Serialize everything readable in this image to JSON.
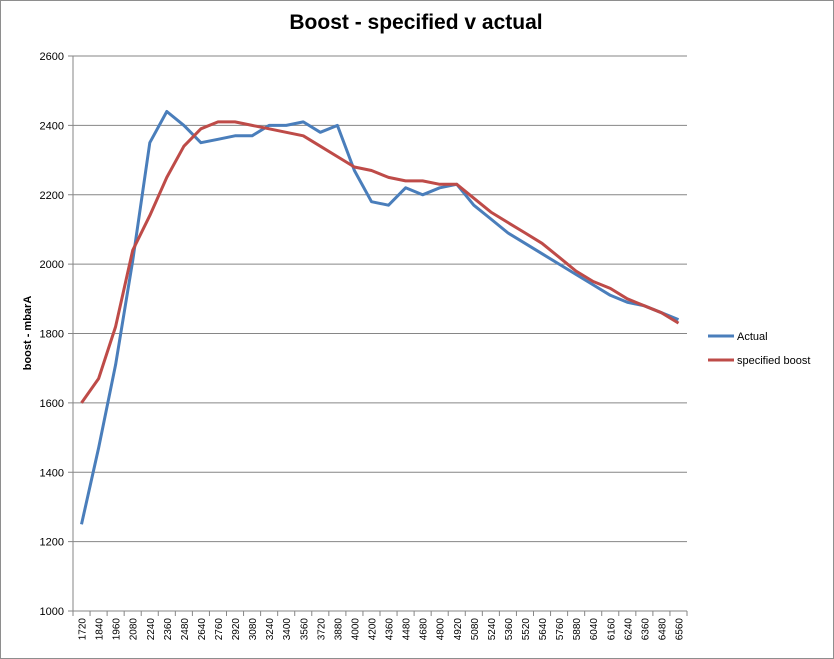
{
  "chart_data": {
    "type": "line",
    "title": "Boost - specified v actual",
    "xlabel": "",
    "ylabel": "boost - mbarA",
    "ylim": [
      1000,
      2600
    ],
    "yticks": [
      1000,
      1200,
      1400,
      1600,
      1800,
      2000,
      2200,
      2400,
      2600
    ],
    "grid": true,
    "legend_position": "right",
    "categories": [
      "1720",
      "1840",
      "1960",
      "2080",
      "2240",
      "2360",
      "2480",
      "2640",
      "2760",
      "2920",
      "3080",
      "3240",
      "3400",
      "3560",
      "3720",
      "3880",
      "4000",
      "4200",
      "4360",
      "4480",
      "4680",
      "4800",
      "4920",
      "5080",
      "5240",
      "5360",
      "5520",
      "5640",
      "5760",
      "5880",
      "6040",
      "6160",
      "6240",
      "6360",
      "6480",
      "6560"
    ],
    "series": [
      {
        "name": "Actual",
        "color": "#4a7ebb",
        "values": [
          1250,
          1470,
          1710,
          2010,
          2350,
          2440,
          2400,
          2350,
          2360,
          2370,
          2370,
          2400,
          2400,
          2410,
          2380,
          2400,
          2270,
          2180,
          2170,
          2220,
          2200,
          2220,
          2230,
          2170,
          2130,
          2090,
          2060,
          2030,
          2000,
          1970,
          1940,
          1910,
          1890,
          1880,
          1860,
          1840
        ]
      },
      {
        "name": "specified boost",
        "color": "#be4b48",
        "values": [
          1600,
          1670,
          1820,
          2040,
          2140,
          2250,
          2340,
          2390,
          2410,
          2410,
          2400,
          2390,
          2380,
          2370,
          2340,
          2310,
          2280,
          2270,
          2250,
          2240,
          2240,
          2230,
          2230,
          2190,
          2150,
          2120,
          2090,
          2060,
          2020,
          1980,
          1950,
          1930,
          1900,
          1880,
          1860,
          1830
        ]
      }
    ]
  }
}
